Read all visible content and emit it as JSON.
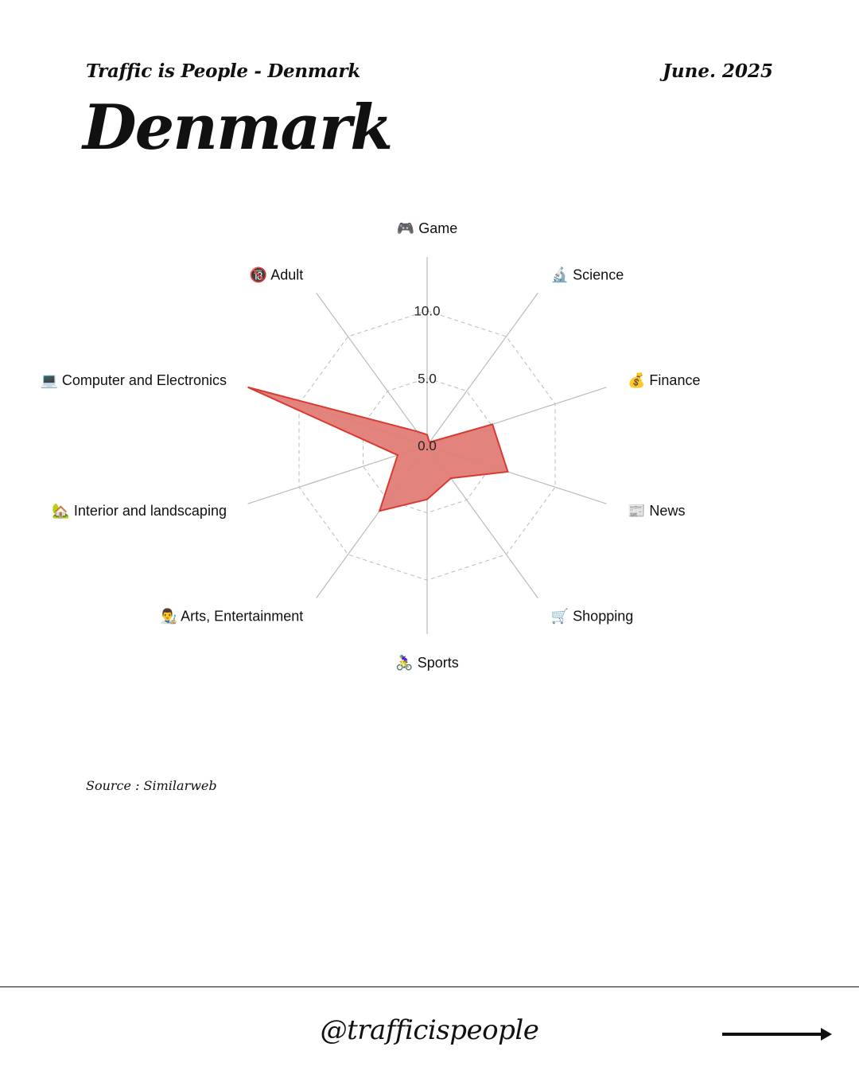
{
  "header": {
    "series_title": "Traffic is People - Denmark",
    "date": "June. 2025",
    "title": "Denmark"
  },
  "chart_data": {
    "type": "radar",
    "categories": [
      {
        "label": "Game",
        "icon": "🎮"
      },
      {
        "label": "Science",
        "icon": "🔬"
      },
      {
        "label": "Finance",
        "icon": "💰"
      },
      {
        "label": "News",
        "icon": "📰"
      },
      {
        "label": "Shopping",
        "icon": "🛒"
      },
      {
        "label": "Sports",
        "icon": "🚴‍♀️"
      },
      {
        "label": "Arts, Entertainment",
        "icon": "👨‍🎨"
      },
      {
        "label": "Interior and landscaping",
        "icon": "🏡"
      },
      {
        "label": "Computer and Electronics",
        "icon": "💻"
      },
      {
        "label": "Adult",
        "icon": "🔞"
      }
    ],
    "series": [
      {
        "values": [
          0.8,
          0.3,
          5.1,
          6.3,
          3.0,
          4.0,
          6.0,
          2.3,
          14.0,
          1.3
        ],
        "color": "#d93a30",
        "fill": "#e27c76"
      }
    ],
    "rlim": [
      0,
      14
    ],
    "ticks": [
      {
        "value": 0,
        "label": "0.0"
      },
      {
        "value": 5,
        "label": "5.0"
      },
      {
        "value": 10,
        "label": "10.0"
      }
    ],
    "grid": true
  },
  "source": "Source : Similarweb",
  "footer": {
    "handle": "@trafficispeople"
  },
  "icons": {
    "arrow": "arrow-right-icon"
  }
}
